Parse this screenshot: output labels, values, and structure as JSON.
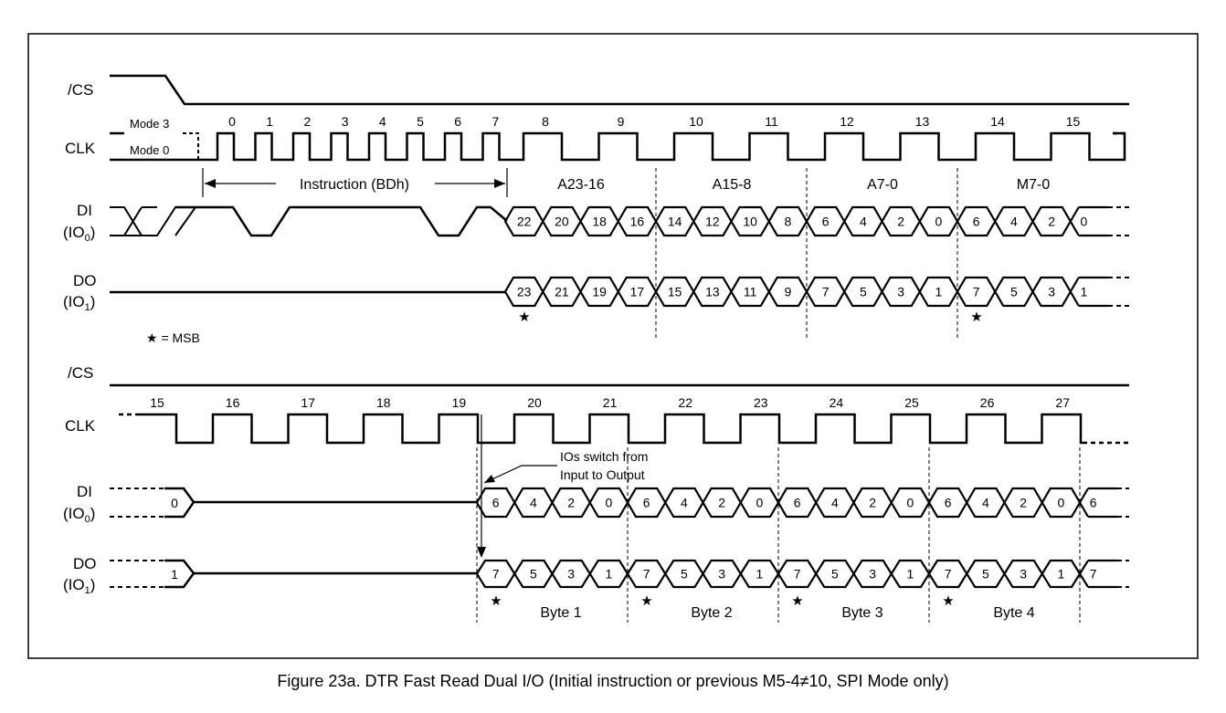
{
  "caption": "Figure 23a. DTR Fast Read Dual I/O (Initial instruction or previous M5-4≠10, SPI Mode only)",
  "signals": {
    "cs": "/CS",
    "clk": "CLK",
    "di": "DI",
    "di_sub": "(IO",
    "di_idx": "0",
    "do": "DO",
    "do_sub": "(IO",
    "do_idx": "1",
    "close_paren": ")"
  },
  "mode_labels": {
    "mode3": "Mode 3",
    "mode0": "Mode 0"
  },
  "instruction_label": "Instruction (BDh)",
  "address_labels": [
    "A23-16",
    "A15-8",
    "A7-0",
    "M7-0"
  ],
  "top_clk_numbers": [
    "0",
    "1",
    "2",
    "3",
    "4",
    "5",
    "6",
    "7",
    "8",
    "9",
    "10",
    "11",
    "12",
    "13",
    "14",
    "15"
  ],
  "top_di_values": [
    "22",
    "20",
    "18",
    "16",
    "14",
    "12",
    "10",
    "8",
    "6",
    "4",
    "2",
    "0",
    "6",
    "4",
    "2",
    "0"
  ],
  "top_do_values": [
    "23",
    "21",
    "19",
    "17",
    "15",
    "13",
    "11",
    "9",
    "7",
    "5",
    "3",
    "1",
    "7",
    "5",
    "3",
    "1"
  ],
  "msb_legend": "★ = MSB",
  "msb_star": "★",
  "bottom_clk_numbers": [
    "15",
    "16",
    "17",
    "18",
    "19",
    "20",
    "21",
    "22",
    "23",
    "24",
    "25",
    "26",
    "27"
  ],
  "bottom_di_first": "0",
  "bottom_do_first": "1",
  "bottom_di_values": [
    "6",
    "4",
    "2",
    "0",
    "6",
    "4",
    "2",
    "0",
    "6",
    "4",
    "2",
    "0",
    "6",
    "4",
    "2",
    "0",
    "6"
  ],
  "bottom_do_values": [
    "7",
    "5",
    "3",
    "1",
    "7",
    "5",
    "3",
    "1",
    "7",
    "5",
    "3",
    "1",
    "7",
    "5",
    "3",
    "1",
    "7"
  ],
  "byte_labels": [
    "Byte 1",
    "Byte 2",
    "Byte 3",
    "Byte 4"
  ],
  "io_switch_line1": "IOs switch from",
  "io_switch_line2": "Input to Output"
}
